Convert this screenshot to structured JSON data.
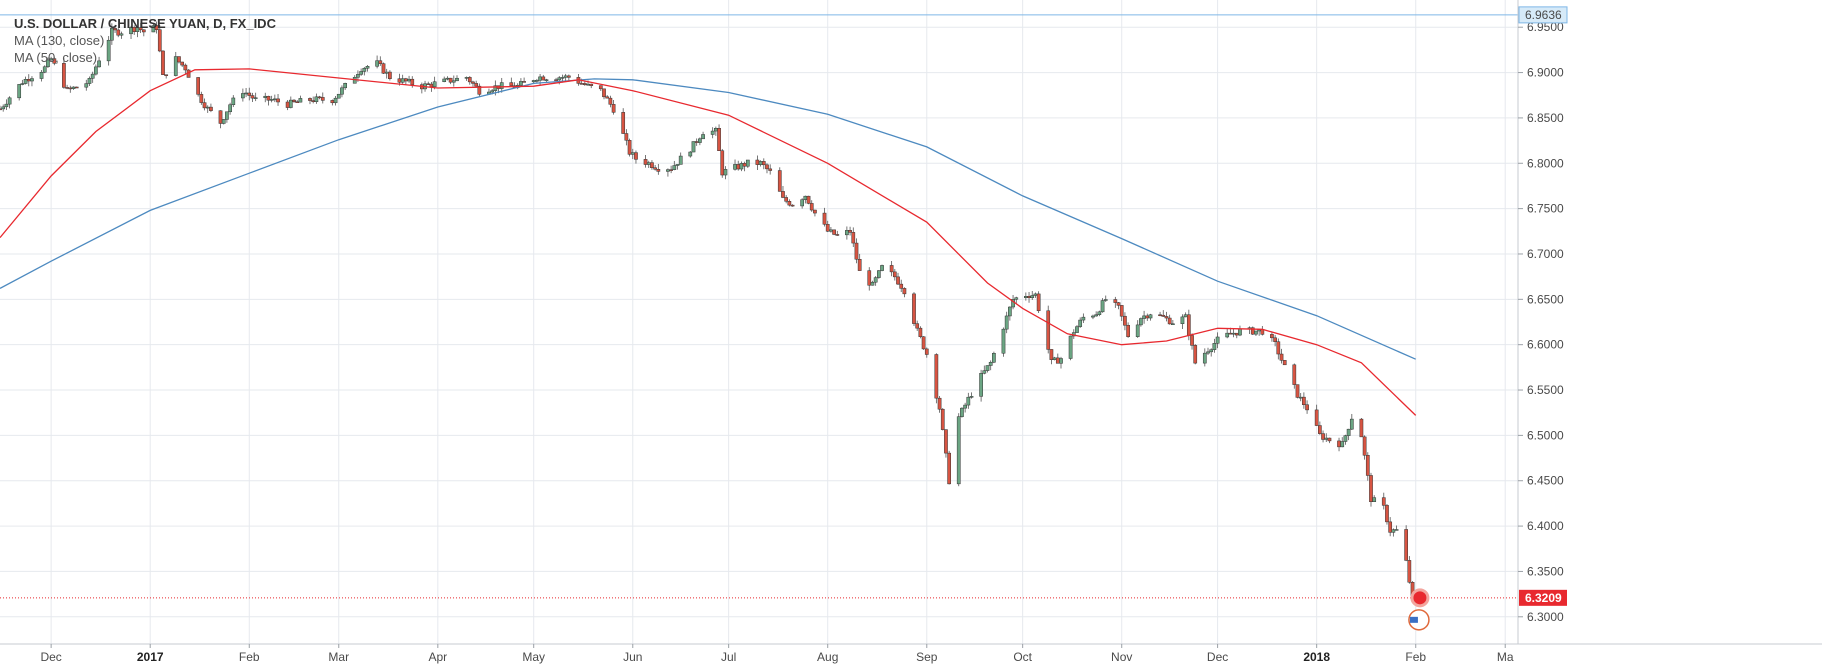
{
  "legend": {
    "title": "U.S. DOLLAR / CHINESE YUAN, D, FX_IDC",
    "ma130": "MA (130, close)",
    "ma50": "MA (50, close)"
  },
  "colors": {
    "up": "#6ba583",
    "down": "#d75442",
    "ma130": "#4d8ac0",
    "ma50": "#e8292f",
    "grid": "#e6e9ee",
    "level_line": "#7fb7e6",
    "last_price": "#e8292f"
  },
  "icons": [
    "earnings-flag-icon"
  ],
  "chart_data": {
    "type": "candlestick",
    "symbol": "U.S. DOLLAR / CHINESE YUAN",
    "interval": "D",
    "source": "FX_IDC",
    "y_axis": {
      "ticks": [
        "6.3000",
        "6.3500",
        "6.4000",
        "6.4500",
        "6.5000",
        "6.5500",
        "6.6000",
        "6.6500",
        "6.7000",
        "6.7500",
        "6.8000",
        "6.8500",
        "6.9000",
        "6.9500"
      ],
      "range": [
        6.27,
        6.98
      ],
      "position": "right"
    },
    "x_axis": {
      "ticks": [
        {
          "label": "Dec",
          "date": "2016-12-01"
        },
        {
          "label": "2017",
          "date": "2017-01-01",
          "bold": true
        },
        {
          "label": "Feb",
          "date": "2017-02-01"
        },
        {
          "label": "Mar",
          "date": "2017-03-01"
        },
        {
          "label": "Apr",
          "date": "2017-04-01"
        },
        {
          "label": "May",
          "date": "2017-05-01"
        },
        {
          "label": "Jun",
          "date": "2017-06-01"
        },
        {
          "label": "Jul",
          "date": "2017-07-01"
        },
        {
          "label": "Aug",
          "date": "2017-08-01"
        },
        {
          "label": "Sep",
          "date": "2017-09-01"
        },
        {
          "label": "Oct",
          "date": "2017-10-01"
        },
        {
          "label": "Nov",
          "date": "2017-11-01"
        },
        {
          "label": "Dec",
          "date": "2017-12-01"
        },
        {
          "label": "2018",
          "date": "2018-01-01",
          "bold": true
        },
        {
          "label": "Feb",
          "date": "2018-02-01"
        },
        {
          "label": "Ma",
          "date": "2018-03-01"
        }
      ],
      "range": [
        "2016-11-15",
        "2018-03-05"
      ]
    },
    "grid": true,
    "horizontal_level": {
      "value": 6.9636,
      "label": "6.9636"
    },
    "last_price": {
      "value": 6.3209,
      "label": "6.3209"
    },
    "price_path": [
      [
        "2016-11-15",
        6.86
      ],
      [
        "2016-11-22",
        6.89
      ],
      [
        "2016-11-29",
        6.905
      ],
      [
        "2016-12-01",
        6.915
      ],
      [
        "2016-12-06",
        6.88
      ],
      [
        "2016-12-13",
        6.89
      ],
      [
        "2016-12-16",
        6.915
      ],
      [
        "2016-12-20",
        6.945
      ],
      [
        "2016-12-23",
        6.945
      ],
      [
        "2016-12-28",
        6.95
      ],
      [
        "2016-12-30",
        6.945
      ],
      [
        "2017-01-03",
        6.95
      ],
      [
        "2017-01-05",
        6.895
      ],
      [
        "2017-01-09",
        6.915
      ],
      [
        "2017-01-12",
        6.905
      ],
      [
        "2017-01-16",
        6.875
      ],
      [
        "2017-01-19",
        6.86
      ],
      [
        "2017-01-23",
        6.845
      ],
      [
        "2017-01-26",
        6.865
      ],
      [
        "2017-01-30",
        6.88
      ],
      [
        "2017-02-03",
        6.87
      ],
      [
        "2017-02-08",
        6.87
      ],
      [
        "2017-02-13",
        6.865
      ],
      [
        "2017-02-20",
        6.87
      ],
      [
        "2017-02-27",
        6.87
      ],
      [
        "2017-03-03",
        6.885
      ],
      [
        "2017-03-08",
        6.905
      ],
      [
        "2017-03-13",
        6.91
      ],
      [
        "2017-03-17",
        6.895
      ],
      [
        "2017-03-22",
        6.89
      ],
      [
        "2017-03-27",
        6.885
      ],
      [
        "2017-04-03",
        6.89
      ],
      [
        "2017-04-10",
        6.895
      ],
      [
        "2017-04-14",
        6.88
      ],
      [
        "2017-04-20",
        6.885
      ],
      [
        "2017-04-26",
        6.885
      ],
      [
        "2017-05-02",
        6.895
      ],
      [
        "2017-05-08",
        6.895
      ],
      [
        "2017-05-12",
        6.895
      ],
      [
        "2017-05-18",
        6.885
      ],
      [
        "2017-05-22",
        6.88
      ],
      [
        "2017-05-26",
        6.86
      ],
      [
        "2017-05-31",
        6.812
      ],
      [
        "2017-06-02",
        6.805
      ],
      [
        "2017-06-06",
        6.8
      ],
      [
        "2017-06-09",
        6.795
      ],
      [
        "2017-06-13",
        6.795
      ],
      [
        "2017-06-16",
        6.805
      ],
      [
        "2017-06-20",
        6.82
      ],
      [
        "2017-06-23",
        6.835
      ],
      [
        "2017-06-27",
        6.835
      ],
      [
        "2017-06-29",
        6.79
      ],
      [
        "2017-07-03",
        6.795
      ],
      [
        "2017-07-07",
        6.8
      ],
      [
        "2017-07-11",
        6.8
      ],
      [
        "2017-07-14",
        6.79
      ],
      [
        "2017-07-18",
        6.76
      ],
      [
        "2017-07-21",
        6.755
      ],
      [
        "2017-07-25",
        6.765
      ],
      [
        "2017-07-28",
        6.745
      ],
      [
        "2017-08-01",
        6.725
      ],
      [
        "2017-08-04",
        6.72
      ],
      [
        "2017-08-08",
        6.725
      ],
      [
        "2017-08-11",
        6.68
      ],
      [
        "2017-08-15",
        6.665
      ],
      [
        "2017-08-18",
        6.685
      ],
      [
        "2017-08-22",
        6.675
      ],
      [
        "2017-08-25",
        6.66
      ],
      [
        "2017-08-29",
        6.615
      ],
      [
        "2017-09-01",
        6.59
      ],
      [
        "2017-09-05",
        6.53
      ],
      [
        "2017-09-08",
        6.45
      ],
      [
        "2017-09-11",
        6.52
      ],
      [
        "2017-09-14",
        6.54
      ],
      [
        "2017-09-18",
        6.565
      ],
      [
        "2017-09-21",
        6.58
      ],
      [
        "2017-09-25",
        6.62
      ],
      [
        "2017-09-28",
        6.65
      ],
      [
        "2017-10-02",
        6.655
      ],
      [
        "2017-10-05",
        6.655
      ],
      [
        "2017-10-10",
        6.58
      ],
      [
        "2017-10-13",
        6.585
      ],
      [
        "2017-10-17",
        6.615
      ],
      [
        "2017-10-20",
        6.63
      ],
      [
        "2017-10-24",
        6.635
      ],
      [
        "2017-10-27",
        6.65
      ],
      [
        "2017-10-31",
        6.64
      ],
      [
        "2017-11-03",
        6.61
      ],
      [
        "2017-11-07",
        6.63
      ],
      [
        "2017-11-10",
        6.635
      ],
      [
        "2017-11-14",
        6.63
      ],
      [
        "2017-11-17",
        6.625
      ],
      [
        "2017-11-21",
        6.63
      ],
      [
        "2017-11-24",
        6.58
      ],
      [
        "2017-11-28",
        6.595
      ],
      [
        "2017-12-01",
        6.605
      ],
      [
        "2017-12-05",
        6.612
      ],
      [
        "2017-12-08",
        6.615
      ],
      [
        "2017-12-12",
        6.615
      ],
      [
        "2017-12-15",
        6.615
      ],
      [
        "2017-12-19",
        6.6
      ],
      [
        "2017-12-22",
        6.575
      ],
      [
        "2017-12-26",
        6.545
      ],
      [
        "2017-12-29",
        6.53
      ],
      [
        "2018-01-02",
        6.5
      ],
      [
        "2018-01-05",
        6.495
      ],
      [
        "2018-01-09",
        6.49
      ],
      [
        "2018-01-12",
        6.52
      ],
      [
        "2018-01-15",
        6.5
      ],
      [
        "2018-01-18",
        6.43
      ],
      [
        "2018-01-22",
        6.42
      ],
      [
        "2018-01-24",
        6.395
      ],
      [
        "2018-01-26",
        6.395
      ],
      [
        "2018-01-29",
        6.36
      ],
      [
        "2018-01-31",
        6.318
      ],
      [
        "2018-02-02",
        6.3209
      ]
    ],
    "series": [
      {
        "name": "MA (130, close)",
        "values": [
          [
            "2016-11-15",
            6.662
          ],
          [
            "2016-12-01",
            6.692
          ],
          [
            "2017-01-01",
            6.748
          ],
          [
            "2017-02-01",
            6.789
          ],
          [
            "2017-03-01",
            6.826
          ],
          [
            "2017-04-01",
            6.862
          ],
          [
            "2017-05-01",
            6.888
          ],
          [
            "2017-05-20",
            6.893
          ],
          [
            "2017-06-01",
            6.892
          ],
          [
            "2017-07-01",
            6.878
          ],
          [
            "2017-08-01",
            6.854
          ],
          [
            "2017-09-01",
            6.818
          ],
          [
            "2017-10-01",
            6.764
          ],
          [
            "2017-11-01",
            6.717
          ],
          [
            "2017-12-01",
            6.67
          ],
          [
            "2018-01-01",
            6.632
          ],
          [
            "2018-02-01",
            6.584
          ]
        ]
      },
      {
        "name": "MA (50, close)",
        "values": [
          [
            "2016-11-15",
            6.718
          ],
          [
            "2016-12-01",
            6.786
          ],
          [
            "2016-12-15",
            6.835
          ],
          [
            "2017-01-01",
            6.88
          ],
          [
            "2017-01-15",
            6.903
          ],
          [
            "2017-02-01",
            6.904
          ],
          [
            "2017-03-01",
            6.894
          ],
          [
            "2017-04-01",
            6.883
          ],
          [
            "2017-05-01",
            6.885
          ],
          [
            "2017-05-15",
            6.892
          ],
          [
            "2017-06-01",
            6.88
          ],
          [
            "2017-07-01",
            6.853
          ],
          [
            "2017-08-01",
            6.8
          ],
          [
            "2017-09-01",
            6.735
          ],
          [
            "2017-09-20",
            6.668
          ],
          [
            "2017-10-01",
            6.64
          ],
          [
            "2017-10-15",
            6.612
          ],
          [
            "2017-11-01",
            6.6
          ],
          [
            "2017-11-15",
            6.604
          ],
          [
            "2017-12-01",
            6.618
          ],
          [
            "2017-12-15",
            6.617
          ],
          [
            "2018-01-01",
            6.6
          ],
          [
            "2018-01-15",
            6.58
          ],
          [
            "2018-02-01",
            6.522
          ]
        ]
      }
    ]
  }
}
